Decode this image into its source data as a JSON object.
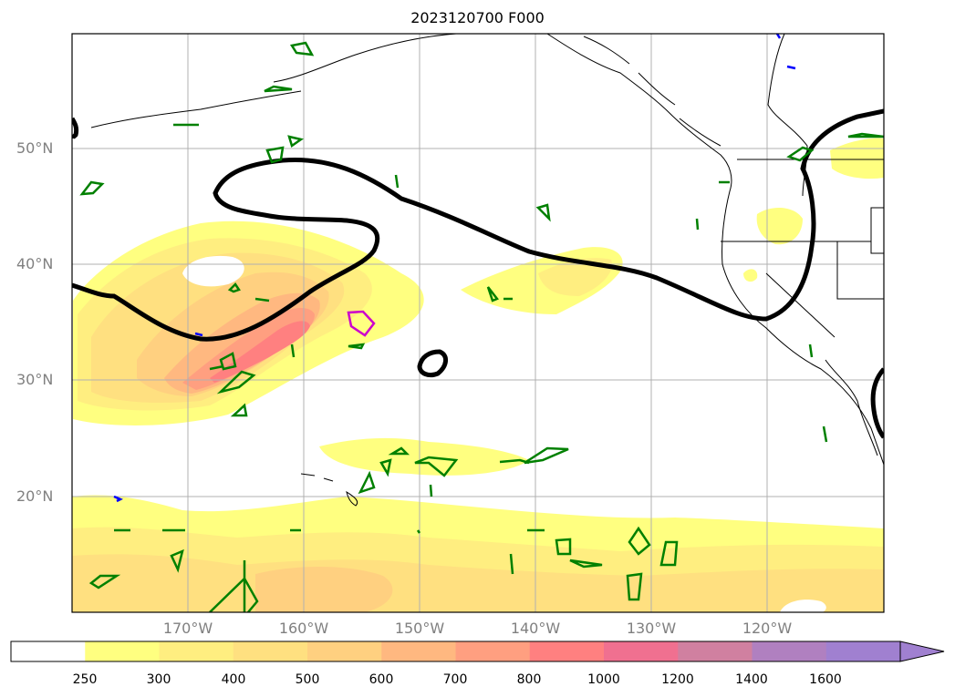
{
  "title": "2023120700 F000",
  "lat_labels": [
    "50°N",
    "40°N",
    "30°N",
    "20°N"
  ],
  "lon_labels": [
    "170°W",
    "160°W",
    "150°W",
    "140°W",
    "130°W",
    "120°W"
  ],
  "colorbar": {
    "ticks": [
      "250",
      "300",
      "400",
      "500",
      "600",
      "700",
      "800",
      "1000",
      "1200",
      "1400",
      "1600"
    ],
    "colors": [
      "#ffffff",
      "#ffff80",
      "#ffee80",
      "#ffe080",
      "#ffd080",
      "#ffb880",
      "#ff9f80",
      "#ff8080",
      "#f07090",
      "#d080a0",
      "#b080c0",
      "#a080d0"
    ],
    "extend": "max"
  },
  "contour_colors": {
    "black": "#000000",
    "green": "#008000",
    "magenta": "#cc00cc",
    "blue": "#0000ff"
  }
}
